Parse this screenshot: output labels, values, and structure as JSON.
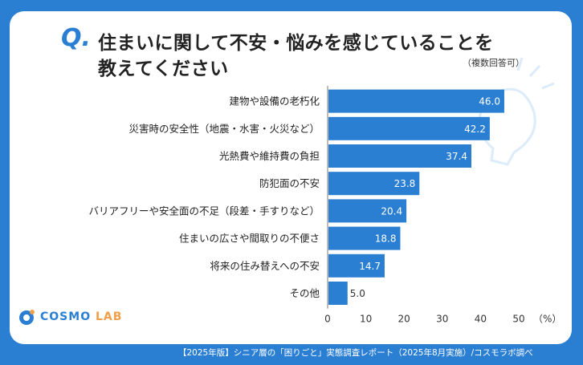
{
  "question": {
    "mark": "Q.",
    "line1": "住まいに関して不安・悩みを感じていることを",
    "line2": "教えてください",
    "note": "（複数回答可）"
  },
  "logo": {
    "text_main": "COSMO",
    "text_accent": "LAB"
  },
  "footer": "【2025年版】シニア層の「困りごと」実態調査レポート（2025年8月実施）/コスモラボ調べ",
  "chart_data": {
    "type": "bar",
    "orientation": "horizontal",
    "categories": [
      "建物や設備の老朽化",
      "災害時の安全性（地震・水害・火災など）",
      "光熱費や維持費の負担",
      "防犯面の不安",
      "バリアフリーや安全面の不足（段差・手すりなど）",
      "住まいの広さや間取りの不便さ",
      "将来の住み替えへの不安",
      "その他"
    ],
    "values": [
      46.0,
      42.2,
      37.4,
      23.8,
      20.4,
      18.8,
      14.7,
      5.0
    ],
    "value_labels": [
      "46.0",
      "42.2",
      "37.4",
      "23.8",
      "20.4",
      "18.8",
      "14.7",
      "5.0"
    ],
    "xlim": [
      0,
      50
    ],
    "ticks": [
      "0",
      "10",
      "20",
      "30",
      "40",
      "50"
    ],
    "tick_values": [
      0,
      10,
      20,
      30,
      40,
      50
    ],
    "unit_label": "（%）",
    "bar_color": "#2b7fd3"
  }
}
